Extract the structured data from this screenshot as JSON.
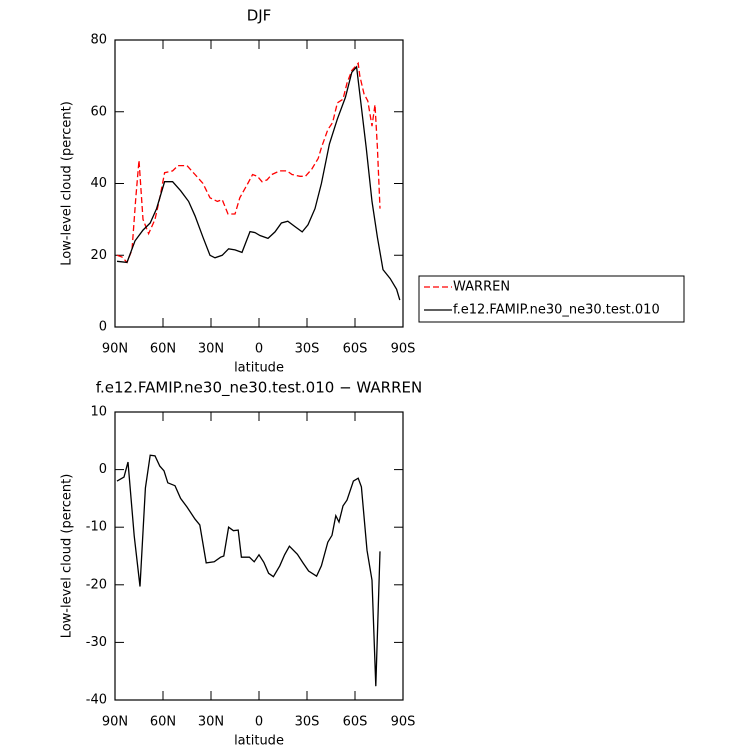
{
  "chart_data": [
    {
      "type": "line",
      "title": "DJF",
      "xlabel": "latitude",
      "ylabel": "Low-level cloud (percent)",
      "xlim": [
        90,
        -90
      ],
      "ylim": [
        0,
        80
      ],
      "xticks": [
        {
          "value": 90,
          "label": "90N"
        },
        {
          "value": 60,
          "label": "60N"
        },
        {
          "value": 30,
          "label": "30N"
        },
        0,
        {
          "value": -30,
          "label": "30S"
        },
        {
          "value": -60,
          "label": "60S"
        },
        {
          "value": -90,
          "label": "90S"
        }
      ],
      "yticks": [
        0,
        20,
        40,
        60,
        80
      ],
      "legend": "outside-right",
      "series": [
        {
          "name": "WARREN",
          "color": "#ff0000",
          "line_style": "dashed",
          "x": [
            88.75,
            85.6,
            82.5,
            79.4,
            77,
            75,
            72.5,
            69,
            65,
            62,
            59,
            54,
            50.6,
            45,
            40,
            35,
            30.6,
            26,
            23,
            19.4,
            15,
            12,
            7,
            4,
            1,
            -1.9,
            -5,
            -8,
            -13,
            -17.5,
            -20.6,
            -25.6,
            -29,
            -33,
            -37,
            -39,
            -43,
            -46,
            -49,
            -52.5,
            -55,
            -58,
            -62,
            -63,
            -65.6,
            -68,
            -70.6,
            -72.5,
            -74,
            -75.6
          ],
          "values": [
            20,
            19.5,
            18,
            21.5,
            36,
            46.5,
            30,
            26,
            30,
            36,
            43,
            43.5,
            45,
            45,
            42.5,
            40,
            36,
            35,
            35.5,
            31.5,
            31.5,
            36,
            40,
            42.5,
            42,
            40.5,
            41,
            42.5,
            43.5,
            43.5,
            42.5,
            42,
            42,
            44,
            47,
            50,
            55,
            57,
            62.5,
            63.5,
            68,
            71.5,
            73.5,
            70,
            65,
            63,
            56,
            62,
            50,
            33
          ]
        },
        {
          "name": "f.e12.FAMIP.ne30_ne30.test.010",
          "color": "#000000",
          "line_style": "solid",
          "x": [
            88.75,
            82.5,
            77.5,
            72.5,
            68,
            64,
            59,
            54,
            49,
            44,
            40,
            35,
            30.6,
            27.5,
            23,
            19,
            15,
            10.6,
            5.6,
            2.5,
            -0.6,
            -5.6,
            -10,
            -14,
            -18,
            -22.5,
            -27,
            -30.6,
            -35,
            -39,
            -44,
            -49,
            -54,
            -58,
            -61,
            -63,
            -67,
            -70.6,
            -74,
            -77.5,
            -82,
            -86,
            -88
          ],
          "values": [
            18.3,
            18,
            24,
            27,
            29,
            33,
            40.5,
            40.5,
            38,
            35,
            31,
            25,
            20,
            19.3,
            20,
            21.8,
            21.5,
            20.8,
            26.6,
            26.3,
            25.5,
            24.7,
            26.5,
            29,
            29.5,
            28,
            26.5,
            28.5,
            33,
            40,
            51,
            58,
            64,
            71,
            72.5,
            65,
            50,
            35,
            25,
            16,
            13.5,
            10.5,
            7.5
          ]
        }
      ]
    },
    {
      "type": "line",
      "title": "f.e12.FAMIP.ne30_ne30.test.010 − WARREN",
      "xlabel": "latitude",
      "ylabel": "Low-level cloud (percent)",
      "xlim": [
        90,
        -90
      ],
      "ylim": [
        -40,
        10
      ],
      "xticks": [
        {
          "value": 90,
          "label": "90N"
        },
        {
          "value": 60,
          "label": "60N"
        },
        {
          "value": 30,
          "label": "30N"
        },
        0,
        {
          "value": -30,
          "label": "30S"
        },
        {
          "value": -60,
          "label": "60S"
        },
        {
          "value": -90,
          "label": "90S"
        }
      ],
      "yticks": [
        -40,
        -30,
        -20,
        -10,
        0,
        10
      ],
      "series": [
        {
          "color": "#000000",
          "line_style": "solid",
          "x": [
            88.75,
            84.4,
            81.9,
            78,
            74.4,
            71,
            68,
            65,
            62,
            59.4,
            57,
            52.5,
            49,
            45,
            40,
            37,
            33,
            28,
            24,
            22,
            19,
            16,
            13,
            11,
            6,
            3,
            0,
            -3,
            -6,
            -9,
            -13,
            -16,
            -19,
            -24,
            -27.5,
            -31,
            -36,
            -39,
            -43,
            -45.6,
            -48,
            -50,
            -52.5,
            -55,
            -59,
            -62,
            -64,
            -67.5,
            -70.6,
            -73,
            -75.6
          ],
          "values": [
            -2,
            -1.3,
            1.3,
            -11.5,
            -20.3,
            -3.2,
            2.5,
            2.4,
            0.6,
            -0.2,
            -2.3,
            -2.8,
            -5,
            -6.5,
            -8.6,
            -9.6,
            -16.2,
            -16,
            -15.2,
            -15,
            -10,
            -10.6,
            -10.5,
            -15.2,
            -15.2,
            -16,
            -14.8,
            -16.1,
            -18,
            -18.6,
            -16.7,
            -14.8,
            -13.3,
            -14.7,
            -16.2,
            -17.6,
            -18.5,
            -16.7,
            -12.6,
            -11.4,
            -8,
            -9.1,
            -6.3,
            -5.3,
            -2,
            -1.5,
            -3,
            -14,
            -19.2,
            -37.6,
            -14.2
          ]
        }
      ]
    }
  ]
}
